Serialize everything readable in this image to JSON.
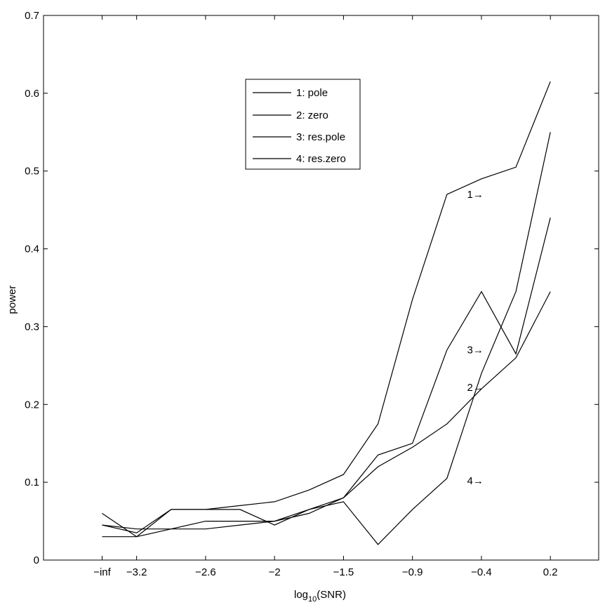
{
  "chart_data": {
    "type": "line",
    "title": "",
    "xlabel": "log",
    "xlabel_sub": "10",
    "xlabel_suffix": "(SNR)",
    "ylabel": "power",
    "ylim": [
      0,
      0.7
    ],
    "yticks": [
      "0",
      "0.1",
      "0.2",
      "0.3",
      "0.4",
      "0.5",
      "0.6",
      "0.7"
    ],
    "yticks_values": [
      0,
      0.1,
      0.2,
      0.3,
      0.4,
      0.5,
      0.6,
      0.7
    ],
    "xticks": [
      "−inf",
      "−3.2",
      "−2.6",
      "−2",
      "−1.5",
      "−0.9",
      "−0.4",
      "0.2"
    ],
    "xticks_index": [
      0,
      0.5,
      1.5,
      2.5,
      3.5,
      4.5,
      5.5,
      6.5
    ],
    "x_index": [
      0,
      0.5,
      1,
      1.5,
      2,
      2.5,
      3,
      3.5,
      4,
      4.5,
      5,
      5.5,
      6,
      6.5
    ],
    "xlim_index": [
      -0.85,
      7.2
    ],
    "grid": false,
    "legend_position": "top-center",
    "series": [
      {
        "name": "1: pole",
        "values": [
          0.045,
          0.035,
          0.065,
          0.065,
          0.07,
          0.075,
          0.09,
          0.11,
          0.175,
          0.335,
          0.47,
          0.49,
          0.505,
          0.615
        ]
      },
      {
        "name": "2: zero",
        "values": [
          0.03,
          0.03,
          0.04,
          0.04,
          0.045,
          0.05,
          0.065,
          0.08,
          0.12,
          0.145,
          0.175,
          0.22,
          0.26,
          0.345
        ]
      },
      {
        "name": "3: res.pole",
        "values": [
          0.045,
          0.04,
          0.04,
          0.05,
          0.05,
          0.05,
          0.06,
          0.08,
          0.135,
          0.15,
          0.27,
          0.345,
          0.265,
          0.44
        ]
      },
      {
        "name": "4: res.zero",
        "values": [
          0.06,
          0.03,
          0.065,
          0.065,
          0.065,
          0.045,
          0.065,
          0.075,
          0.02,
          0.065,
          0.105,
          0.24,
          0.345,
          0.55
        ]
      }
    ],
    "annotations": [
      {
        "label": "1→",
        "x_index": 5.55,
        "y": 0.47
      },
      {
        "label": "3→",
        "x_index": 5.55,
        "y": 0.27
      },
      {
        "label": "2→",
        "x_index": 5.55,
        "y": 0.222
      },
      {
        "label": "4→",
        "x_index": 5.55,
        "y": 0.102
      }
    ]
  }
}
